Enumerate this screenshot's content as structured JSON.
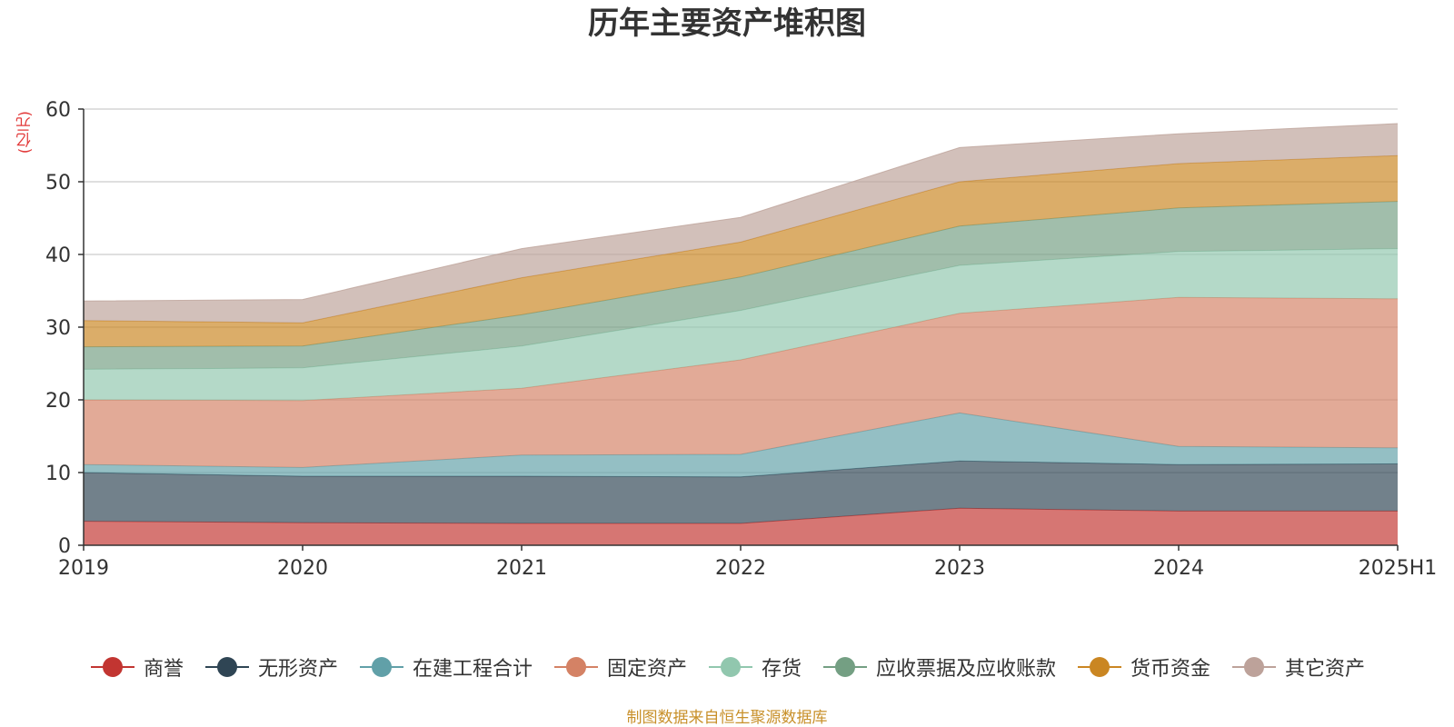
{
  "chart_data": {
    "type": "area",
    "stacked": true,
    "title": "历年主要资产堆积图",
    "unit_label": "(亿元)",
    "categories": [
      "2019",
      "2020",
      "2021",
      "2022",
      "2023",
      "2024",
      "2025H1"
    ],
    "ylim": [
      0,
      60
    ],
    "yticks": [
      0,
      10,
      20,
      30,
      40,
      50,
      60
    ],
    "grid": true,
    "legend_position": "bottom",
    "series": [
      {
        "name": "商誉",
        "color": "#c23531",
        "values": [
          3.3,
          3.1,
          3.0,
          3.0,
          5.1,
          4.7,
          4.7
        ]
      },
      {
        "name": "无形资产",
        "color": "#2f4554",
        "values": [
          6.7,
          6.4,
          6.5,
          6.4,
          6.5,
          6.4,
          6.5
        ]
      },
      {
        "name": "在建工程合计",
        "color": "#61a0a8",
        "values": [
          1.1,
          1.2,
          2.9,
          3.1,
          6.6,
          2.5,
          2.2
        ]
      },
      {
        "name": "固定资产",
        "color": "#d48265",
        "values": [
          8.9,
          9.2,
          9.2,
          13.0,
          13.7,
          20.5,
          20.5
        ]
      },
      {
        "name": "存货",
        "color": "#91c7ae",
        "values": [
          4.2,
          4.5,
          5.8,
          6.8,
          6.6,
          6.3,
          6.9
        ]
      },
      {
        "name": "应收票据及应收账款",
        "color": "#749f83",
        "values": [
          3.1,
          3.0,
          4.3,
          4.6,
          5.4,
          6.0,
          6.5
        ]
      },
      {
        "name": "货币资金",
        "color": "#ca8622",
        "values": [
          3.6,
          3.2,
          5.1,
          4.8,
          6.1,
          6.1,
          6.3
        ]
      },
      {
        "name": "其它资产",
        "color": "#bda29a",
        "values": [
          2.7,
          3.2,
          4.0,
          3.4,
          4.7,
          4.1,
          4.4
        ]
      }
    ],
    "source_note": "制图数据来自恒生聚源数据库"
  }
}
